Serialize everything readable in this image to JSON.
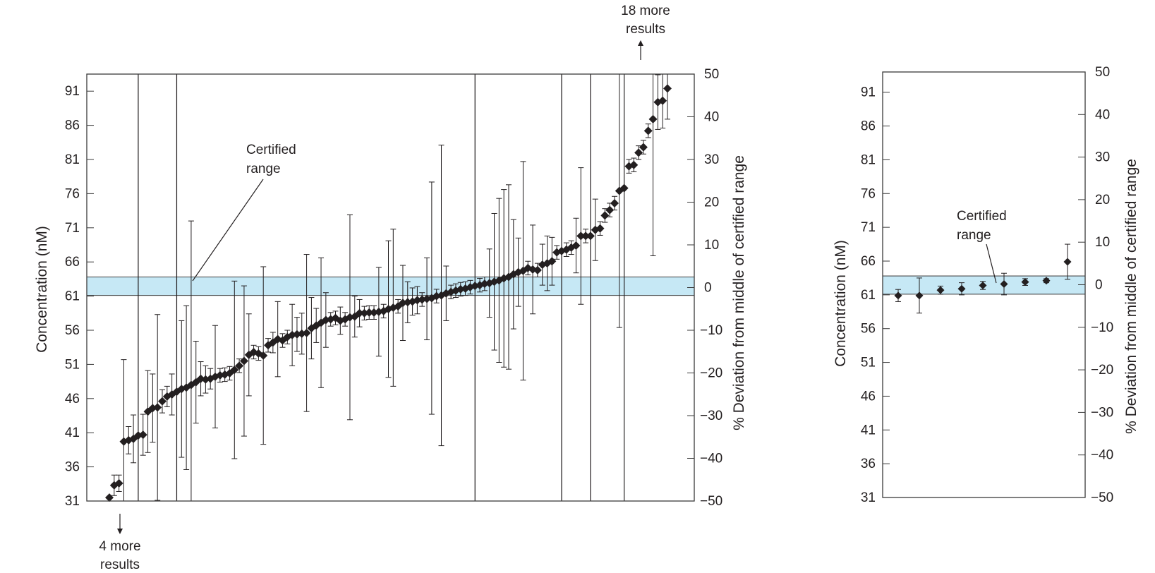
{
  "colors": {
    "band": "#c6e8f5",
    "ink": "#231f20",
    "frame": "#3a3a3a"
  },
  "chart_data": [
    {
      "type": "scatter",
      "title": "",
      "ylabel": "Concentration (nM)",
      "y2label": "% Deviation from middle of certified range",
      "ylim": [
        31,
        93.5
      ],
      "y2lim": [
        -50,
        50
      ],
      "yticks": [
        "91",
        "86",
        "81",
        "76",
        "71",
        "66",
        "61",
        "56",
        "51",
        "46",
        "41",
        "36",
        "31"
      ],
      "y2ticks": [
        "50",
        "40",
        "30",
        "20",
        "10",
        "0",
        "−10",
        "−20",
        "−30",
        "−40",
        "−50"
      ],
      "certified_range": [
        61.1,
        63.8
      ],
      "certified_label": [
        "Certified",
        "range"
      ],
      "annotations": {
        "top": [
          "18 more",
          "results"
        ],
        "bottom": [
          "4 more",
          "results"
        ]
      },
      "points": [
        {
          "y": 31.5,
          "e": 0.0
        },
        {
          "y": 33.3,
          "e": 1.5
        },
        {
          "y": 33.6,
          "e": 1.2
        },
        {
          "y": 39.7,
          "e": 12.0
        },
        {
          "y": 39.9,
          "e": 2.0
        },
        {
          "y": 40.1,
          "e": 3.5
        },
        {
          "y": 40.6,
          "e": 9.5
        },
        {
          "y": 40.7,
          "e": 3.0
        },
        {
          "y": 44.1,
          "e": 6.0
        },
        {
          "y": 44.6,
          "e": 5.0
        },
        {
          "y": 44.7,
          "e": 13.6
        },
        {
          "y": 45.6,
          "e": 1.7
        },
        {
          "y": 46.3,
          "e": 1.5
        },
        {
          "y": 46.6,
          "e": 3.0
        },
        {
          "y": 47.0,
          "e": 2.0
        },
        {
          "y": 47.4,
          "e": 10.0
        },
        {
          "y": 47.6,
          "e": 12.0
        },
        {
          "y": 48.0,
          "e": 24.0
        },
        {
          "y": 48.4,
          "e": 6.0
        },
        {
          "y": 48.9,
          "e": 2.5
        },
        {
          "y": 48.8,
          "e": 2.0
        },
        {
          "y": 48.9,
          "e": 1.5
        },
        {
          "y": 49.2,
          "e": 7.5
        },
        {
          "y": 49.4,
          "e": 1.0
        },
        {
          "y": 49.5,
          "e": 1.0
        },
        {
          "y": 49.7,
          "e": 1.0
        },
        {
          "y": 50.2,
          "e": 13.0
        },
        {
          "y": 50.8,
          "e": 1.0
        },
        {
          "y": 51.5,
          "e": 11.0
        },
        {
          "y": 52.4,
          "e": 6.0
        },
        {
          "y": 52.8,
          "e": 1.0
        },
        {
          "y": 52.6,
          "e": 1.0
        },
        {
          "y": 52.3,
          "e": 13.0
        },
        {
          "y": 53.8,
          "e": 1.0
        },
        {
          "y": 54.2,
          "e": 1.5
        },
        {
          "y": 54.7,
          "e": 5.5
        },
        {
          "y": 54.5,
          "e": 1.0
        },
        {
          "y": 55.0,
          "e": 1.0
        },
        {
          "y": 55.3,
          "e": 4.5
        },
        {
          "y": 55.4,
          "e": 2.5
        },
        {
          "y": 55.5,
          "e": 3.0
        },
        {
          "y": 55.6,
          "e": 11.5
        },
        {
          "y": 56.3,
          "e": 4.5
        },
        {
          "y": 56.7,
          "e": 2.5
        },
        {
          "y": 57.1,
          "e": 9.5
        },
        {
          "y": 57.5,
          "e": 4.0
        },
        {
          "y": 57.6,
          "e": 1.0
        },
        {
          "y": 57.8,
          "e": 1.0
        },
        {
          "y": 57.4,
          "e": 2.0
        },
        {
          "y": 57.6,
          "e": 1.0
        },
        {
          "y": 57.9,
          "e": 15.0
        },
        {
          "y": 58.0,
          "e": 3.0
        },
        {
          "y": 58.5,
          "e": 2.0
        },
        {
          "y": 58.5,
          "e": 1.0
        },
        {
          "y": 58.6,
          "e": 1.0
        },
        {
          "y": 58.6,
          "e": 1.0
        },
        {
          "y": 58.7,
          "e": 6.5
        },
        {
          "y": 58.8,
          "e": 1.0
        },
        {
          "y": 59.1,
          "e": 10.0
        },
        {
          "y": 59.3,
          "e": 11.5
        },
        {
          "y": 59.5,
          "e": 1.0
        },
        {
          "y": 60.0,
          "e": 5.5
        },
        {
          "y": 60.1,
          "e": 3.0
        },
        {
          "y": 60.2,
          "e": 2.0
        },
        {
          "y": 60.4,
          "e": 2.0
        },
        {
          "y": 60.5,
          "e": 1.0
        },
        {
          "y": 60.6,
          "e": 6.0
        },
        {
          "y": 60.7,
          "e": 17.0
        },
        {
          "y": 61.0,
          "e": 1.0
        },
        {
          "y": 61.1,
          "e": 22.0
        },
        {
          "y": 61.4,
          "e": 4.0
        },
        {
          "y": 61.6,
          "e": 1.0
        },
        {
          "y": 61.8,
          "e": 1.0
        },
        {
          "y": 62.0,
          "e": 1.0
        },
        {
          "y": 62.1,
          "e": 1.0
        },
        {
          "y": 62.3,
          "e": 1.0
        },
        {
          "y": 62.5,
          "e": 1.0
        },
        {
          "y": 62.6,
          "e": 1.0
        },
        {
          "y": 62.8,
          "e": 1.0
        },
        {
          "y": 62.9,
          "e": 5.0
        },
        {
          "y": 63.1,
          "e": 10.0
        },
        {
          "y": 63.3,
          "e": 12.0
        },
        {
          "y": 63.6,
          "e": 13.0
        },
        {
          "y": 63.8,
          "e": 13.5
        },
        {
          "y": 64.2,
          "e": 8.0
        },
        {
          "y": 64.5,
          "e": 5.0
        },
        {
          "y": 64.7,
          "e": 16.0
        },
        {
          "y": 65.1,
          "e": 1.0
        },
        {
          "y": 64.9,
          "e": 6.5
        },
        {
          "y": 64.8,
          "e": 1.0
        },
        {
          "y": 65.6,
          "e": 3.0
        },
        {
          "y": 65.8,
          "e": 4.0
        },
        {
          "y": 66.1,
          "e": 3.5
        },
        {
          "y": 67.4,
          "e": 1.0
        },
        {
          "y": 67.6,
          "e": 1.0
        },
        {
          "y": 67.8,
          "e": 1.0
        },
        {
          "y": 68.1,
          "e": 1.0
        },
        {
          "y": 68.4,
          "e": 4.0
        },
        {
          "y": 69.8,
          "e": 10.0
        },
        {
          "y": 69.8,
          "e": 1.0
        },
        {
          "y": 69.8,
          "e": 1.0
        },
        {
          "y": 70.7,
          "e": 4.5
        },
        {
          "y": 70.9,
          "e": 1.0
        },
        {
          "y": 72.8,
          "e": 1.0
        },
        {
          "y": 73.6,
          "e": 1.0
        },
        {
          "y": 74.6,
          "e": 1.0
        },
        {
          "y": 76.4,
          "e": 20.0
        },
        {
          "y": 76.8,
          "e": 1.0
        },
        {
          "y": 80.0,
          "e": 1.0
        },
        {
          "y": 80.2,
          "e": 1.0
        },
        {
          "y": 82.0,
          "e": 1.0
        },
        {
          "y": 82.8,
          "e": 1.0
        },
        {
          "y": 85.2,
          "e": 1.0
        },
        {
          "y": 86.9,
          "e": 20.0
        },
        {
          "y": 89.4,
          "e": 4.0
        },
        {
          "y": 89.6,
          "e": 4.0
        },
        {
          "y": 91.4,
          "e": 4.5
        }
      ],
      "full_range_bars_at_index": [
        6,
        14,
        76,
        94,
        100,
        107
      ]
    },
    {
      "type": "scatter",
      "title": "",
      "ylabel": "Concentration (nM)",
      "y2label": "% Deviation from middle of certified range",
      "ylim": [
        31,
        94
      ],
      "y2lim": [
        -50,
        50
      ],
      "yticks": [
        "91",
        "86",
        "81",
        "76",
        "71",
        "66",
        "61",
        "56",
        "51",
        "46",
        "41",
        "36",
        "31"
      ],
      "y2ticks": [
        "50",
        "40",
        "30",
        "20",
        "10",
        "0",
        "−10",
        "−20",
        "−30",
        "−40",
        "−50"
      ],
      "certified_range": [
        61.1,
        63.8
      ],
      "certified_label": [
        "Certified",
        "range"
      ],
      "points": [
        {
          "y": 60.9,
          "e": 0.9
        },
        {
          "y": 60.9,
          "e": 2.6
        },
        {
          "y": 61.7,
          "e": 0.6
        },
        {
          "y": 61.9,
          "e": 0.9
        },
        {
          "y": 62.4,
          "e": 0.6
        },
        {
          "y": 62.6,
          "e": 1.6
        },
        {
          "y": 62.9,
          "e": 0.5
        },
        {
          "y": 63.1,
          "e": 0.3
        },
        {
          "y": 65.9,
          "e": 2.6
        }
      ]
    }
  ]
}
